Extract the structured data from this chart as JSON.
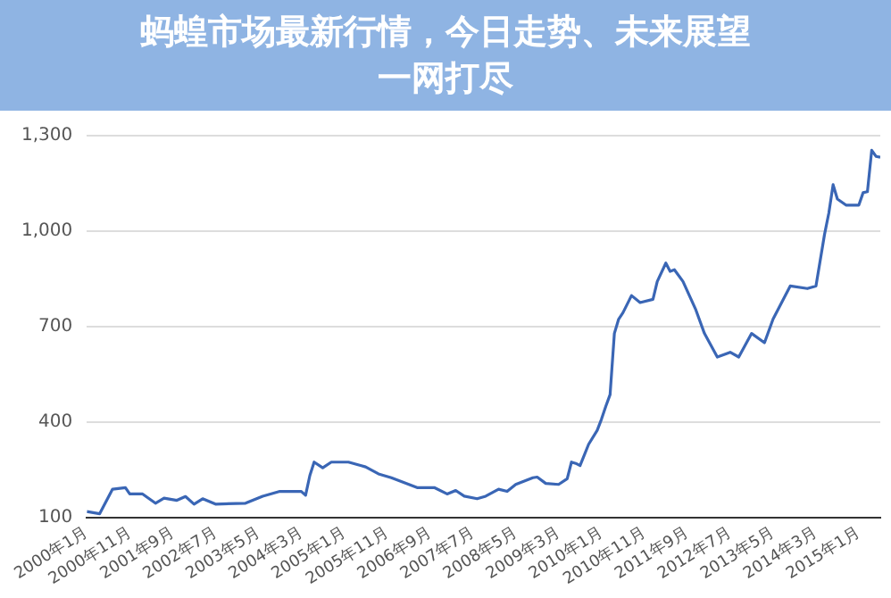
{
  "chart_data": {
    "type": "line",
    "title": "蚂蝗市场最新行情，今日走势、未来展望一网打尽",
    "x": [
      "2000-01",
      "2000-04",
      "2000-07",
      "2000-10",
      "2000-11",
      "2001-02",
      "2001-05",
      "2001-07",
      "2001-10",
      "2001-12",
      "2002-02",
      "2002-04",
      "2002-07",
      "2003-02",
      "2003-06",
      "2003-10",
      "2004-03",
      "2004-04",
      "2004-05",
      "2004-06",
      "2004-08",
      "2004-10",
      "2005-02",
      "2005-05",
      "2005-06",
      "2005-09",
      "2005-12",
      "2006-06",
      "2006-10",
      "2007-01",
      "2007-03",
      "2007-05",
      "2007-08",
      "2007-10",
      "2008-01",
      "2008-03",
      "2008-05",
      "2008-09",
      "2008-10",
      "2008-12",
      "2009-03",
      "2009-05",
      "2009-06",
      "2009-07",
      "2009-08",
      "2009-10",
      "2009-12",
      "2010-01",
      "2010-02",
      "2010-03",
      "2010-04",
      "2010-05",
      "2010-06",
      "2010-08",
      "2010-10",
      "2011-01",
      "2011-02",
      "2011-04",
      "2011-05",
      "2011-06",
      "2011-08",
      "2011-11",
      "2012-01",
      "2012-04",
      "2012-07",
      "2012-09",
      "2012-12",
      "2013-03",
      "2013-05",
      "2013-09",
      "2014-01",
      "2014-03",
      "2014-05",
      "2014-06",
      "2014-07",
      "2014-08",
      "2014-10",
      "2015-01",
      "2015-02",
      "2015-03",
      "2015-04",
      "2015-05",
      "2015-06"
    ],
    "series": [
      {
        "color": "#3a66b5",
        "values": [
          120,
          113,
          190,
          195,
          175,
          175,
          146,
          162,
          155,
          167,
          143,
          160,
          143,
          146,
          168,
          183,
          183,
          171,
          233,
          275,
          257,
          275,
          275,
          264,
          260,
          238,
          226,
          195,
          195,
          175,
          186,
          168,
          160,
          168,
          190,
          183,
          205,
          226,
          228,
          208,
          205,
          223,
          275,
          271,
          264,
          331,
          375,
          410,
          450,
          487,
          679,
          724,
          744,
          798,
          776,
          786,
          842,
          900,
          874,
          879,
          842,
          753,
          679,
          605,
          620,
          605,
          679,
          650,
          724,
          828,
          820,
          828,
          990,
          1057,
          1146,
          1101,
          1082,
          1082,
          1121,
          1124,
          1254,
          1235,
          1232
        ]
      }
    ],
    "xlim": [
      "2000-01",
      "2015-06"
    ],
    "xticks": [
      {
        "value": "2000-01",
        "label": "2000年1月"
      },
      {
        "value": "2000-11",
        "label": "2000年11月"
      },
      {
        "value": "2001-09",
        "label": "2001年9月"
      },
      {
        "value": "2002-07",
        "label": "2002年7月"
      },
      {
        "value": "2003-05",
        "label": "2003年5月"
      },
      {
        "value": "2004-03",
        "label": "2004年3月"
      },
      {
        "value": "2005-01",
        "label": "2005年1月"
      },
      {
        "value": "2005-11",
        "label": "2005年11月"
      },
      {
        "value": "2006-09",
        "label": "2006年9月"
      },
      {
        "value": "2007-07",
        "label": "2007年7月"
      },
      {
        "value": "2008-05",
        "label": "2008年5月"
      },
      {
        "value": "2009-03",
        "label": "2009年3月"
      },
      {
        "value": "2010-01",
        "label": "2010年1月"
      },
      {
        "value": "2010-11",
        "label": "2010年11月"
      },
      {
        "value": "2011-09",
        "label": "2011年9月"
      },
      {
        "value": "2012-07",
        "label": "2012年7月"
      },
      {
        "value": "2013-05",
        "label": "2013年5月"
      },
      {
        "value": "2014-03",
        "label": "2014年3月"
      },
      {
        "value": "2015-01",
        "label": "2015年1月"
      }
    ],
    "ylim": [
      100,
      1300
    ],
    "yticks": [
      {
        "value": 100,
        "label": "100"
      },
      {
        "value": 400,
        "label": "400"
      },
      {
        "value": 700,
        "label": "700"
      },
      {
        "value": 1000,
        "label": "1,000"
      },
      {
        "value": 1300,
        "label": "1,300"
      }
    ],
    "grid": "y",
    "marker": "none",
    "line_style": "solid"
  }
}
